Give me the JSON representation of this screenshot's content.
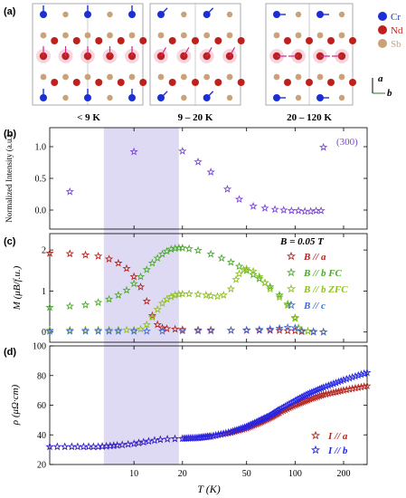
{
  "panel_a": {
    "letter": "(a)",
    "phase_labels": [
      "< 9 K",
      "9 – 20 K",
      "20 – 120 K"
    ],
    "legend": [
      {
        "name": "Cr",
        "color": "#1a2fd6"
      },
      {
        "name": "Nd",
        "color": "#c0201c"
      },
      {
        "name": "Sb",
        "color": "#c9a27a"
      }
    ],
    "axis_a": "a",
    "axis_b": "b"
  },
  "xaxis": {
    "label": "T (K)",
    "scale": "log",
    "ticks": [
      10,
      20,
      50,
      100,
      200
    ],
    "range": [
      3,
      280
    ]
  },
  "shaded_range": [
    6.5,
    19
  ],
  "shade_color": "#d9d4f2",
  "chart_data": [
    {
      "type": "scatter",
      "panel": "(b)",
      "ylabel": "Normalized Intensity (a.u.)",
      "ylim": [
        -0.3,
        1.3
      ],
      "yticks": [
        0.0,
        0.5,
        1.0
      ],
      "annotation": "(300)",
      "series": [
        {
          "color": "#7b46d8",
          "marker": "star",
          "x": [
            4,
            10,
            20,
            25,
            30,
            38,
            45,
            55,
            65,
            75,
            85,
            95,
            105,
            115,
            125,
            135,
            145,
            150
          ],
          "y": [
            0.29,
            0.92,
            0.93,
            0.76,
            0.6,
            0.33,
            0.17,
            0.06,
            0.03,
            0.01,
            0.0,
            -0.01,
            -0.01,
            -0.02,
            -0.02,
            -0.01,
            -0.01,
            0.99
          ]
        }
      ]
    },
    {
      "type": "scatter",
      "panel": "(c)",
      "ylabel": "M (μB/f.u.)",
      "ylim": [
        -0.25,
        2.4
      ],
      "yticks": [
        0,
        1,
        2
      ],
      "annotation": "B = 0.05 T",
      "series": [
        {
          "name": "B // a",
          "color": "#b5261e",
          "x": [
            3,
            4,
            5,
            6,
            7,
            8,
            9,
            10,
            11,
            12,
            13,
            14,
            15,
            16,
            18,
            20,
            25,
            30,
            40,
            50,
            60,
            70,
            80,
            90,
            100,
            110,
            130,
            150
          ],
          "y": [
            1.92,
            1.91,
            1.88,
            1.85,
            1.78,
            1.68,
            1.55,
            1.35,
            1.1,
            0.75,
            0.4,
            0.18,
            0.1,
            0.08,
            0.07,
            0.06,
            0.05,
            0.05,
            0.04,
            0.04,
            0.04,
            0.04,
            0.04,
            0.03,
            0.03,
            0.01,
            0.0,
            0.0
          ]
        },
        {
          "name": "B // b FC",
          "color": "#4aaa2a",
          "x": [
            3,
            4,
            5,
            6,
            7,
            8,
            9,
            10,
            11,
            12,
            13,
            14,
            15,
            16,
            17,
            18,
            19,
            20,
            22,
            25,
            30,
            35,
            40,
            45,
            50,
            55,
            60,
            65,
            70,
            80,
            90,
            100,
            105,
            110,
            120,
            130,
            150
          ],
          "y": [
            0.6,
            0.63,
            0.66,
            0.72,
            0.8,
            0.9,
            1.02,
            1.18,
            1.35,
            1.52,
            1.68,
            1.8,
            1.9,
            1.97,
            2.02,
            2.04,
            2.05,
            2.05,
            2.03,
            1.99,
            1.9,
            1.8,
            1.7,
            1.6,
            1.5,
            1.4,
            1.3,
            1.2,
            1.1,
            0.9,
            0.68,
            0.35,
            0.1,
            0.03,
            0.02,
            0.01,
            0.0
          ]
        },
        {
          "name": "B // b ZFC",
          "color": "#8ec01e",
          "x": [
            3,
            4,
            5,
            6,
            7,
            8,
            9,
            10,
            11,
            12,
            13,
            14,
            15,
            16,
            17,
            18,
            19,
            20,
            22,
            25,
            28,
            30,
            33,
            36,
            40,
            43,
            45,
            48,
            50,
            55,
            60,
            65,
            70,
            80,
            90,
            100,
            105,
            110,
            120,
            150
          ],
          "y": [
            0.05,
            0.05,
            0.05,
            0.05,
            0.05,
            0.05,
            0.05,
            0.05,
            0.07,
            0.18,
            0.36,
            0.55,
            0.7,
            0.8,
            0.86,
            0.9,
            0.92,
            0.93,
            0.93,
            0.92,
            0.9,
            0.88,
            0.87,
            0.9,
            1.05,
            1.28,
            1.42,
            1.52,
            1.54,
            1.48,
            1.35,
            1.2,
            1.05,
            0.85,
            0.65,
            0.33,
            0.1,
            0.03,
            0.02,
            0.0
          ]
        },
        {
          "name": "B // c",
          "color": "#3f6ad8",
          "x": [
            3,
            4,
            5,
            6,
            7,
            8,
            10,
            12,
            15,
            20,
            25,
            30,
            40,
            50,
            60,
            70,
            80,
            90,
            100,
            110,
            130,
            150
          ],
          "y": [
            0.02,
            0.02,
            0.02,
            0.02,
            0.02,
            0.02,
            0.02,
            0.02,
            0.02,
            0.03,
            0.03,
            0.03,
            0.04,
            0.05,
            0.06,
            0.07,
            0.09,
            0.11,
            0.1,
            0.03,
            0.01,
            0.0
          ]
        }
      ]
    },
    {
      "type": "line",
      "panel": "(d)",
      "ylabel": "ρ (μΩ·cm)",
      "ylim": [
        20,
        100
      ],
      "yticks": [
        20,
        40,
        60,
        80,
        100
      ],
      "series": [
        {
          "name": "I // a",
          "color": "#b5261e",
          "x": [
            3,
            4,
            5,
            6,
            7,
            8,
            10,
            12,
            15,
            20,
            25,
            30,
            40,
            50,
            60,
            70,
            80,
            100,
            120,
            150,
            200,
            280
          ],
          "y": [
            32,
            32,
            32,
            32,
            32.5,
            33,
            34,
            35.5,
            37,
            37.5,
            38,
            39,
            41.5,
            44.5,
            48,
            51.5,
            55,
            60,
            63.5,
            67,
            70,
            73
          ]
        },
        {
          "name": "I // b",
          "color": "#2424e6",
          "x": [
            3,
            4,
            5,
            6,
            7,
            8,
            10,
            12,
            15,
            20,
            25,
            30,
            40,
            50,
            60,
            70,
            80,
            100,
            120,
            150,
            200,
            280
          ],
          "y": [
            32,
            32,
            32,
            32,
            32.5,
            33,
            34,
            35.5,
            37,
            37.5,
            38,
            39,
            42,
            45.5,
            49.5,
            53,
            57,
            63,
            67.5,
            72,
            77,
            82
          ]
        }
      ]
    }
  ]
}
